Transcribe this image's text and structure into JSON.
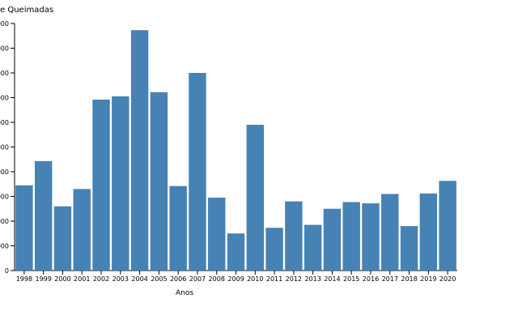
{
  "chart_data": {
    "type": "bar",
    "title": "e Queimadas",
    "xlabel": "Anos",
    "ylabel": "",
    "categories": [
      "1998",
      "1999",
      "2000",
      "2001",
      "2002",
      "2003",
      "2004",
      "2005",
      "2006",
      "2007",
      "2008",
      "2009",
      "2010",
      "2011",
      "2012",
      "2013",
      "2014",
      "2015",
      "2016",
      "2017",
      "2018",
      "2019",
      "2020"
    ],
    "values": [
      34.5,
      44.3,
      26.0,
      33.0,
      69.2,
      70.5,
      97.3,
      72.2,
      34.2,
      80.0,
      29.5,
      15.0,
      59.0,
      17.3,
      28.0,
      18.5,
      25.0,
      27.7,
      27.2,
      31.0,
      18.0,
      31.2,
      36.3
    ],
    "ylim": [
      0,
      100
    ],
    "yticks": [
      0,
      10,
      20,
      30,
      40,
      50,
      60,
      70,
      80,
      90,
      100
    ],
    "ytick_labels": [
      "0",
      "000",
      "000",
      "000",
      "000",
      "000",
      "000",
      "000",
      "000",
      "000",
      "000"
    ],
    "grid": false,
    "bar_color": "#4682b4"
  }
}
